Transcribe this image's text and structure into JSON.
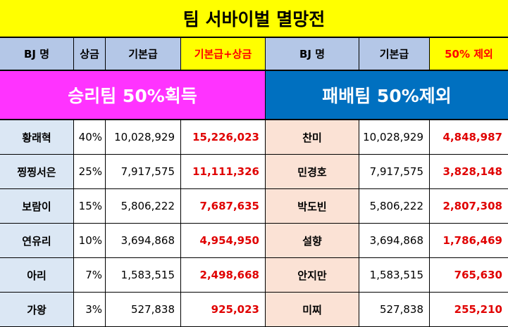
{
  "title": "팀 서바이벌 멸망전",
  "headers": [
    "BJ 명",
    "상금",
    "기본급",
    "기본급+상금",
    "BJ 명",
    "기본급",
    "50% 제외"
  ],
  "banners": {
    "win": "승리팀 50%획득",
    "lose": "패배팀 50%제외"
  },
  "rows": [
    {
      "name": "황래혁",
      "pct": "40%",
      "base": "10,028,929",
      "total": "15,226,023",
      "name2": "찬미",
      "base2": "10,028,929",
      "minus": "4,848,987"
    },
    {
      "name": "찡찡서은",
      "pct": "25%",
      "base": "7,917,575",
      "total": "11,111,326",
      "name2": "민경호",
      "base2": "7,917,575",
      "minus": "3,828,148"
    },
    {
      "name": "보람이",
      "pct": "15%",
      "base": "5,806,222",
      "total": "7,687,635",
      "name2": "박도빈",
      "base2": "5,806,222",
      "minus": "2,807,308"
    },
    {
      "name": "연유리",
      "pct": "10%",
      "base": "3,694,868",
      "total": "4,954,950",
      "name2": "설향",
      "base2": "3,694,868",
      "minus": "1,786,469"
    },
    {
      "name": "아리",
      "pct": "7%",
      "base": "1,583,515",
      "total": "2,498,668",
      "name2": "안지만",
      "base2": "1,583,515",
      "minus": "765,630"
    },
    {
      "name": "가왕",
      "pct": "3%",
      "base": "527,838",
      "total": "925,023",
      "name2": "미찌",
      "base2": "527,838",
      "minus": "255,210"
    }
  ],
  "colors": {
    "title_bg": "#ffff00",
    "header_bg": "#b4c7e7",
    "win_bg": "#ff33ff",
    "lose_bg": "#0070c0",
    "accent_red": "#e00000"
  }
}
